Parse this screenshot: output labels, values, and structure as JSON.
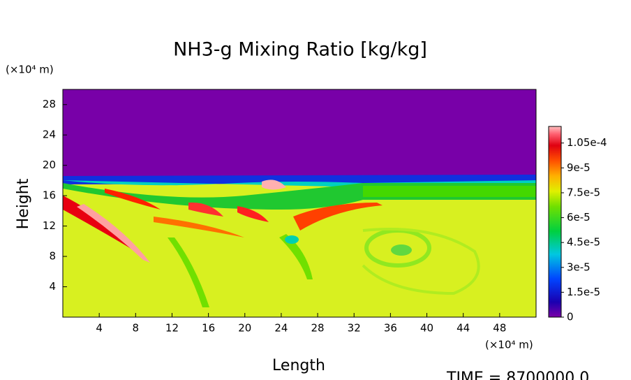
{
  "chart_data": {
    "type": "contour",
    "title": "NH3-g Mixing Ratio [kg/kg]",
    "xlabel": "Length",
    "ylabel": "Height",
    "x_unit": "(×10⁴ m)",
    "y_unit": "(×10⁴ m)",
    "xlim": [
      0,
      52
    ],
    "xticks": [
      4,
      8,
      12,
      16,
      20,
      24,
      28,
      32,
      36,
      40,
      44,
      48
    ],
    "ylim": [
      0,
      30
    ],
    "yticks": [
      4,
      8,
      12,
      16,
      20,
      24,
      28
    ],
    "colorbar": {
      "clim": [
        0,
        0.000115
      ],
      "ticks": [
        0,
        {
          "value": 1.5e-05,
          "label": "1.5e-5"
        },
        {
          "value": 3e-05,
          "label": "3e-5"
        },
        {
          "value": 4.5e-05,
          "label": "4.5e-5"
        },
        {
          "value": 6e-05,
          "label": "6e-5"
        },
        {
          "value": 7.5e-05,
          "label": "7.5e-5"
        },
        {
          "value": 9e-05,
          "label": "9e-5"
        },
        {
          "value": 0.000105,
          "label": "1.05e-4"
        }
      ]
    },
    "annotation": "TIME = 8700000.0"
  }
}
